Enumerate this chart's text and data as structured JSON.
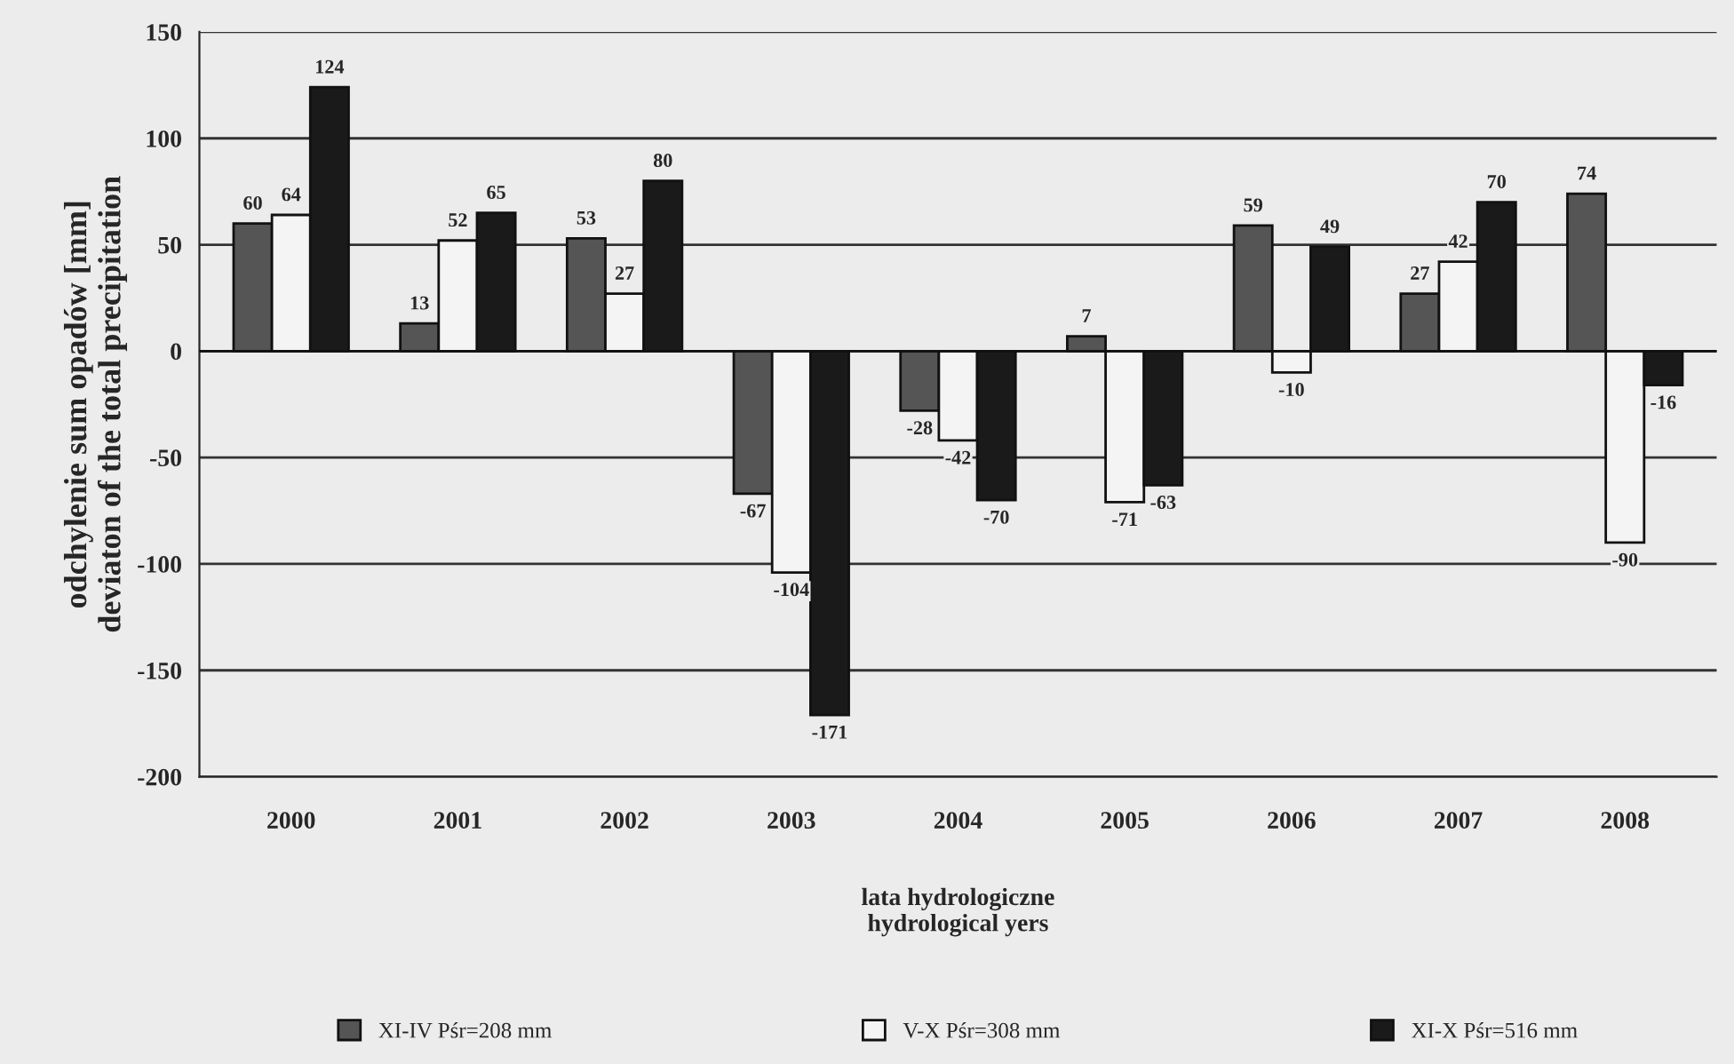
{
  "chart_data": {
    "type": "bar",
    "xlabel": "lata hydrologiczne\nhydrological yers",
    "ylabel": "odchylenie sum opadów [mm]\ndeviaton of the total precipitation",
    "categories": [
      "2000",
      "2001",
      "2002",
      "2003",
      "2004",
      "2005",
      "2006",
      "2007",
      "2008"
    ],
    "series": [
      {
        "name": "XI-IV Pśr=208 mm",
        "color": "#555555",
        "values": [
          60,
          13,
          53,
          -67,
          -28,
          7,
          59,
          27,
          74
        ]
      },
      {
        "name": "V-X Pśr=308 mm",
        "color": "#f4f4f4",
        "values": [
          64,
          52,
          27,
          -104,
          -42,
          -71,
          -10,
          42,
          -90
        ]
      },
      {
        "name": "XI-X Pśr=516 mm",
        "color": "#1a1a1a",
        "values": [
          124,
          65,
          80,
          -171,
          -70,
          -63,
          49,
          70,
          -16
        ]
      }
    ],
    "ylim": [
      -200,
      150
    ],
    "yticks": [
      -200,
      -150,
      -100,
      -50,
      0,
      50,
      100,
      150
    ],
    "grid": "y",
    "legend": "bottom",
    "data_labels": true
  }
}
